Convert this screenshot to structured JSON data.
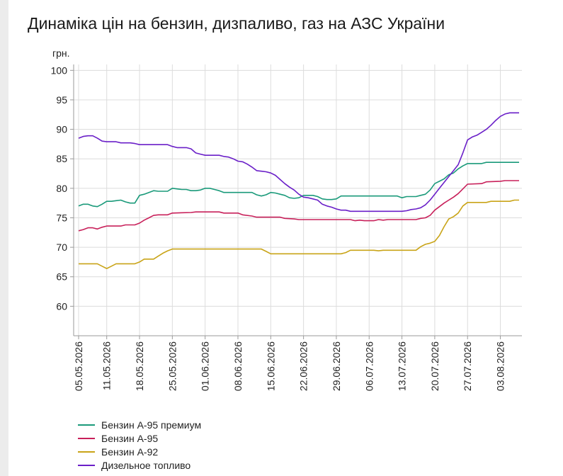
{
  "title": "Динаміка цін на бензин, дизпаливо, газ на АЗС України",
  "chart_data": {
    "type": "line",
    "ylabel": "грн.",
    "ylim": [
      55,
      101
    ],
    "yticks": [
      60,
      65,
      70,
      75,
      80,
      85,
      90,
      95,
      100
    ],
    "x_start": "05.05.2026",
    "x_end": "07.08.2026",
    "xtick_labels": [
      "05.05.2026",
      "11.05.2026",
      "18.05.2026",
      "25.05.2026",
      "01.06.2026",
      "08.06.2026",
      "15.06.2026",
      "22.06.2026",
      "29.06.2026",
      "06.07.2026",
      "13.07.2026",
      "20.07.2026",
      "27.07.2026",
      "03.08.2026"
    ],
    "grid": true,
    "legend_position": "bottom-left",
    "series": [
      {
        "name": "Бензин А-95 премиум",
        "color": "#1a9a7a",
        "points": [
          [
            "05.05.2026",
            77.0
          ],
          [
            "06.05.2026",
            77.3
          ],
          [
            "07.05.2026",
            77.3
          ],
          [
            "08.05.2026",
            77.0
          ],
          [
            "09.05.2026",
            76.9
          ],
          [
            "10.05.2026",
            77.3
          ],
          [
            "11.05.2026",
            77.8
          ],
          [
            "12.05.2026",
            77.8
          ],
          [
            "13.05.2026",
            77.9
          ],
          [
            "14.05.2026",
            78.0
          ],
          [
            "15.05.2026",
            77.7
          ],
          [
            "16.05.2026",
            77.5
          ],
          [
            "17.05.2026",
            77.5
          ],
          [
            "18.05.2026",
            78.8
          ],
          [
            "19.05.2026",
            79.0
          ],
          [
            "20.05.2026",
            79.3
          ],
          [
            "21.05.2026",
            79.6
          ],
          [
            "22.05.2026",
            79.5
          ],
          [
            "24.05.2026",
            79.5
          ],
          [
            "25.05.2026",
            80.0
          ],
          [
            "26.05.2026",
            79.9
          ],
          [
            "27.05.2026",
            79.8
          ],
          [
            "28.05.2026",
            79.8
          ],
          [
            "29.05.2026",
            79.6
          ],
          [
            "30.05.2026",
            79.6
          ],
          [
            "31.05.2026",
            79.7
          ],
          [
            "01.06.2026",
            80.0
          ],
          [
            "02.06.2026",
            80.0
          ],
          [
            "03.06.2026",
            79.8
          ],
          [
            "04.06.2026",
            79.6
          ],
          [
            "05.06.2026",
            79.3
          ],
          [
            "11.06.2026",
            79.3
          ],
          [
            "12.06.2026",
            78.9
          ],
          [
            "13.06.2026",
            78.7
          ],
          [
            "14.06.2026",
            78.9
          ],
          [
            "15.06.2026",
            79.3
          ],
          [
            "16.06.2026",
            79.2
          ],
          [
            "17.06.2026",
            79.0
          ],
          [
            "18.06.2026",
            78.8
          ],
          [
            "19.06.2026",
            78.4
          ],
          [
            "20.06.2026",
            78.3
          ],
          [
            "21.06.2026",
            78.4
          ],
          [
            "22.06.2026",
            78.8
          ],
          [
            "24.06.2026",
            78.8
          ],
          [
            "25.06.2026",
            78.6
          ],
          [
            "26.06.2026",
            78.2
          ],
          [
            "27.06.2026",
            78.1
          ],
          [
            "28.06.2026",
            78.1
          ],
          [
            "29.06.2026",
            78.2
          ],
          [
            "30.06.2026",
            78.7
          ],
          [
            "12.07.2026",
            78.7
          ],
          [
            "13.07.2026",
            78.4
          ],
          [
            "14.07.2026",
            78.6
          ],
          [
            "16.07.2026",
            78.6
          ],
          [
            "17.07.2026",
            78.8
          ],
          [
            "18.07.2026",
            79.0
          ],
          [
            "19.07.2026",
            79.7
          ],
          [
            "20.07.2026",
            80.8
          ],
          [
            "21.07.2026",
            81.2
          ],
          [
            "22.07.2026",
            81.6
          ],
          [
            "23.07.2026",
            82.3
          ],
          [
            "24.07.2026",
            82.6
          ],
          [
            "25.07.2026",
            83.3
          ],
          [
            "26.07.2026",
            83.8
          ],
          [
            "27.07.2026",
            84.2
          ],
          [
            "30.07.2026",
            84.2
          ],
          [
            "31.07.2026",
            84.4
          ],
          [
            "07.08.2026",
            84.4
          ]
        ]
      },
      {
        "name": "Бензин А-95",
        "color": "#c8205a",
        "points": [
          [
            "05.05.2026",
            72.8
          ],
          [
            "06.05.2026",
            73.0
          ],
          [
            "07.05.2026",
            73.3
          ],
          [
            "08.05.2026",
            73.3
          ],
          [
            "09.05.2026",
            73.1
          ],
          [
            "10.05.2026",
            73.4
          ],
          [
            "11.05.2026",
            73.6
          ],
          [
            "14.05.2026",
            73.6
          ],
          [
            "15.05.2026",
            73.8
          ],
          [
            "17.05.2026",
            73.8
          ],
          [
            "18.05.2026",
            74.1
          ],
          [
            "19.05.2026",
            74.6
          ],
          [
            "20.05.2026",
            75.0
          ],
          [
            "21.05.2026",
            75.4
          ],
          [
            "22.05.2026",
            75.5
          ],
          [
            "24.05.2026",
            75.5
          ],
          [
            "25.05.2026",
            75.8
          ],
          [
            "29.05.2026",
            75.9
          ],
          [
            "30.05.2026",
            76.0
          ],
          [
            "04.06.2026",
            76.0
          ],
          [
            "05.06.2026",
            75.8
          ],
          [
            "08.06.2026",
            75.8
          ],
          [
            "09.06.2026",
            75.5
          ],
          [
            "11.06.2026",
            75.3
          ],
          [
            "12.06.2026",
            75.1
          ],
          [
            "17.06.2026",
            75.1
          ],
          [
            "18.06.2026",
            74.9
          ],
          [
            "20.06.2026",
            74.8
          ],
          [
            "21.06.2026",
            74.7
          ],
          [
            "02.07.2026",
            74.7
          ],
          [
            "03.07.2026",
            74.5
          ],
          [
            "04.07.2026",
            74.6
          ],
          [
            "05.07.2026",
            74.5
          ],
          [
            "07.07.2026",
            74.5
          ],
          [
            "08.07.2026",
            74.7
          ],
          [
            "09.07.2026",
            74.6
          ],
          [
            "10.07.2026",
            74.7
          ],
          [
            "16.07.2026",
            74.7
          ],
          [
            "17.07.2026",
            74.9
          ],
          [
            "18.07.2026",
            75.0
          ],
          [
            "19.07.2026",
            75.4
          ],
          [
            "20.07.2026",
            76.3
          ],
          [
            "21.07.2026",
            76.9
          ],
          [
            "22.07.2026",
            77.5
          ],
          [
            "23.07.2026",
            78.0
          ],
          [
            "24.07.2026",
            78.5
          ],
          [
            "25.07.2026",
            79.1
          ],
          [
            "26.07.2026",
            79.9
          ],
          [
            "27.07.2026",
            80.7
          ],
          [
            "30.07.2026",
            80.8
          ],
          [
            "31.07.2026",
            81.1
          ],
          [
            "03.08.2026",
            81.2
          ],
          [
            "04.08.2026",
            81.3
          ],
          [
            "07.08.2026",
            81.3
          ]
        ]
      },
      {
        "name": "Бензин А-92",
        "color": "#c9a418",
        "points": [
          [
            "05.05.2026",
            67.2
          ],
          [
            "09.05.2026",
            67.2
          ],
          [
            "10.05.2026",
            66.8
          ],
          [
            "11.05.2026",
            66.4
          ],
          [
            "12.05.2026",
            66.8
          ],
          [
            "13.05.2026",
            67.2
          ],
          [
            "17.05.2026",
            67.2
          ],
          [
            "18.05.2026",
            67.5
          ],
          [
            "19.05.2026",
            68.0
          ],
          [
            "21.05.2026",
            68.0
          ],
          [
            "22.05.2026",
            68.5
          ],
          [
            "23.05.2026",
            69.0
          ],
          [
            "24.05.2026",
            69.4
          ],
          [
            "25.05.2026",
            69.7
          ],
          [
            "13.06.2026",
            69.7
          ],
          [
            "14.06.2026",
            69.3
          ],
          [
            "15.06.2026",
            68.9
          ],
          [
            "30.06.2026",
            68.9
          ],
          [
            "01.07.2026",
            69.1
          ],
          [
            "02.07.2026",
            69.5
          ],
          [
            "07.07.2026",
            69.5
          ],
          [
            "08.07.2026",
            69.4
          ],
          [
            "09.07.2026",
            69.5
          ],
          [
            "16.07.2026",
            69.5
          ],
          [
            "17.07.2026",
            70.1
          ],
          [
            "18.07.2026",
            70.5
          ],
          [
            "19.07.2026",
            70.7
          ],
          [
            "20.07.2026",
            71.0
          ],
          [
            "21.07.2026",
            72.0
          ],
          [
            "22.07.2026",
            73.5
          ],
          [
            "23.07.2026",
            74.8
          ],
          [
            "24.07.2026",
            75.2
          ],
          [
            "25.07.2026",
            75.8
          ],
          [
            "26.07.2026",
            77.0
          ],
          [
            "27.07.2026",
            77.6
          ],
          [
            "31.07.2026",
            77.6
          ],
          [
            "01.08.2026",
            77.8
          ],
          [
            "05.08.2026",
            77.8
          ],
          [
            "06.08.2026",
            78.0
          ],
          [
            "07.08.2026",
            78.0
          ]
        ]
      },
      {
        "name": "Дизельное топливо",
        "color": "#6a1fc8",
        "points": [
          [
            "05.05.2026",
            88.5
          ],
          [
            "06.05.2026",
            88.8
          ],
          [
            "07.05.2026",
            88.9
          ],
          [
            "08.05.2026",
            88.9
          ],
          [
            "09.05.2026",
            88.5
          ],
          [
            "10.05.2026",
            88.0
          ],
          [
            "11.05.2026",
            87.9
          ],
          [
            "13.05.2026",
            87.9
          ],
          [
            "14.05.2026",
            87.7
          ],
          [
            "16.05.2026",
            87.7
          ],
          [
            "17.05.2026",
            87.6
          ],
          [
            "18.05.2026",
            87.4
          ],
          [
            "24.05.2026",
            87.4
          ],
          [
            "25.05.2026",
            87.1
          ],
          [
            "26.05.2026",
            86.9
          ],
          [
            "28.05.2026",
            86.9
          ],
          [
            "29.05.2026",
            86.7
          ],
          [
            "30.05.2026",
            86.0
          ],
          [
            "31.05.2026",
            85.8
          ],
          [
            "01.06.2026",
            85.6
          ],
          [
            "04.06.2026",
            85.6
          ],
          [
            "05.06.2026",
            85.4
          ],
          [
            "06.06.2026",
            85.3
          ],
          [
            "07.06.2026",
            85.0
          ],
          [
            "08.06.2026",
            84.6
          ],
          [
            "09.06.2026",
            84.5
          ],
          [
            "10.06.2026",
            84.1
          ],
          [
            "11.06.2026",
            83.6
          ],
          [
            "12.06.2026",
            83.0
          ],
          [
            "13.06.2026",
            82.9
          ],
          [
            "14.06.2026",
            82.8
          ],
          [
            "15.06.2026",
            82.6
          ],
          [
            "16.06.2026",
            82.2
          ],
          [
            "17.06.2026",
            81.5
          ],
          [
            "18.06.2026",
            80.8
          ],
          [
            "19.06.2026",
            80.2
          ],
          [
            "20.06.2026",
            79.7
          ],
          [
            "21.06.2026",
            79.0
          ],
          [
            "22.06.2026",
            78.5
          ],
          [
            "23.06.2026",
            78.4
          ],
          [
            "24.06.2026",
            78.2
          ],
          [
            "25.06.2026",
            78.0
          ],
          [
            "26.06.2026",
            77.3
          ],
          [
            "27.06.2026",
            77.0
          ],
          [
            "28.06.2026",
            76.8
          ],
          [
            "29.06.2026",
            76.5
          ],
          [
            "30.06.2026",
            76.3
          ],
          [
            "01.07.2026",
            76.3
          ],
          [
            "02.07.2026",
            76.1
          ],
          [
            "13.07.2026",
            76.1
          ],
          [
            "14.07.2026",
            76.2
          ],
          [
            "15.07.2026",
            76.4
          ],
          [
            "16.07.2026",
            76.5
          ],
          [
            "17.07.2026",
            76.7
          ],
          [
            "18.07.2026",
            77.2
          ],
          [
            "19.07.2026",
            78.0
          ],
          [
            "20.07.2026",
            79.0
          ],
          [
            "21.07.2026",
            80.0
          ],
          [
            "22.07.2026",
            81.0
          ],
          [
            "23.07.2026",
            82.0
          ],
          [
            "24.07.2026",
            83.0
          ],
          [
            "25.07.2026",
            84.0
          ],
          [
            "26.07.2026",
            86.0
          ],
          [
            "27.07.2026",
            88.2
          ],
          [
            "28.07.2026",
            88.7
          ],
          [
            "29.07.2026",
            89.0
          ],
          [
            "30.07.2026",
            89.5
          ],
          [
            "31.07.2026",
            90.0
          ],
          [
            "01.08.2026",
            90.7
          ],
          [
            "02.08.2026",
            91.5
          ],
          [
            "03.08.2026",
            92.2
          ],
          [
            "04.08.2026",
            92.6
          ],
          [
            "05.08.2026",
            92.8
          ],
          [
            "07.08.2026",
            92.8
          ]
        ]
      }
    ]
  }
}
